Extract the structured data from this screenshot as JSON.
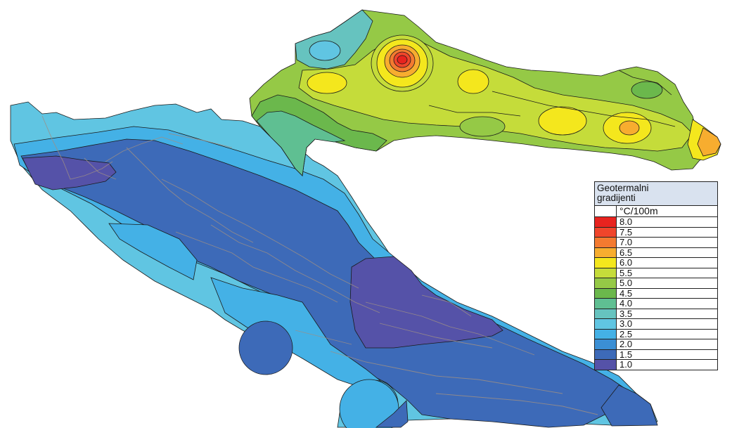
{
  "legend": {
    "title_line1": "Geotermalni",
    "title_line2": "gradijenti",
    "unit": "°C/100m",
    "classes": [
      {
        "value": "8.0",
        "color": "#e8231f"
      },
      {
        "value": "7.5",
        "color": "#f0452b"
      },
      {
        "value": "7.0",
        "color": "#f47a30"
      },
      {
        "value": "6.5",
        "color": "#f7ad2f"
      },
      {
        "value": "6.0",
        "color": "#f4e71d"
      },
      {
        "value": "5.5",
        "color": "#c5dc3a"
      },
      {
        "value": "5.0",
        "color": "#95c946"
      },
      {
        "value": "4.5",
        "color": "#6bb84c"
      },
      {
        "value": "4.0",
        "color": "#5fbf92"
      },
      {
        "value": "3.5",
        "color": "#66c3bf"
      },
      {
        "value": "3.0",
        "color": "#60c5e2"
      },
      {
        "value": "2.5",
        "color": "#44b1e6"
      },
      {
        "value": "2.0",
        "color": "#3b8fd4"
      },
      {
        "value": "1.5",
        "color": "#3d6ab8"
      },
      {
        "value": "1.0",
        "color": "#5552a8"
      }
    ]
  }
}
